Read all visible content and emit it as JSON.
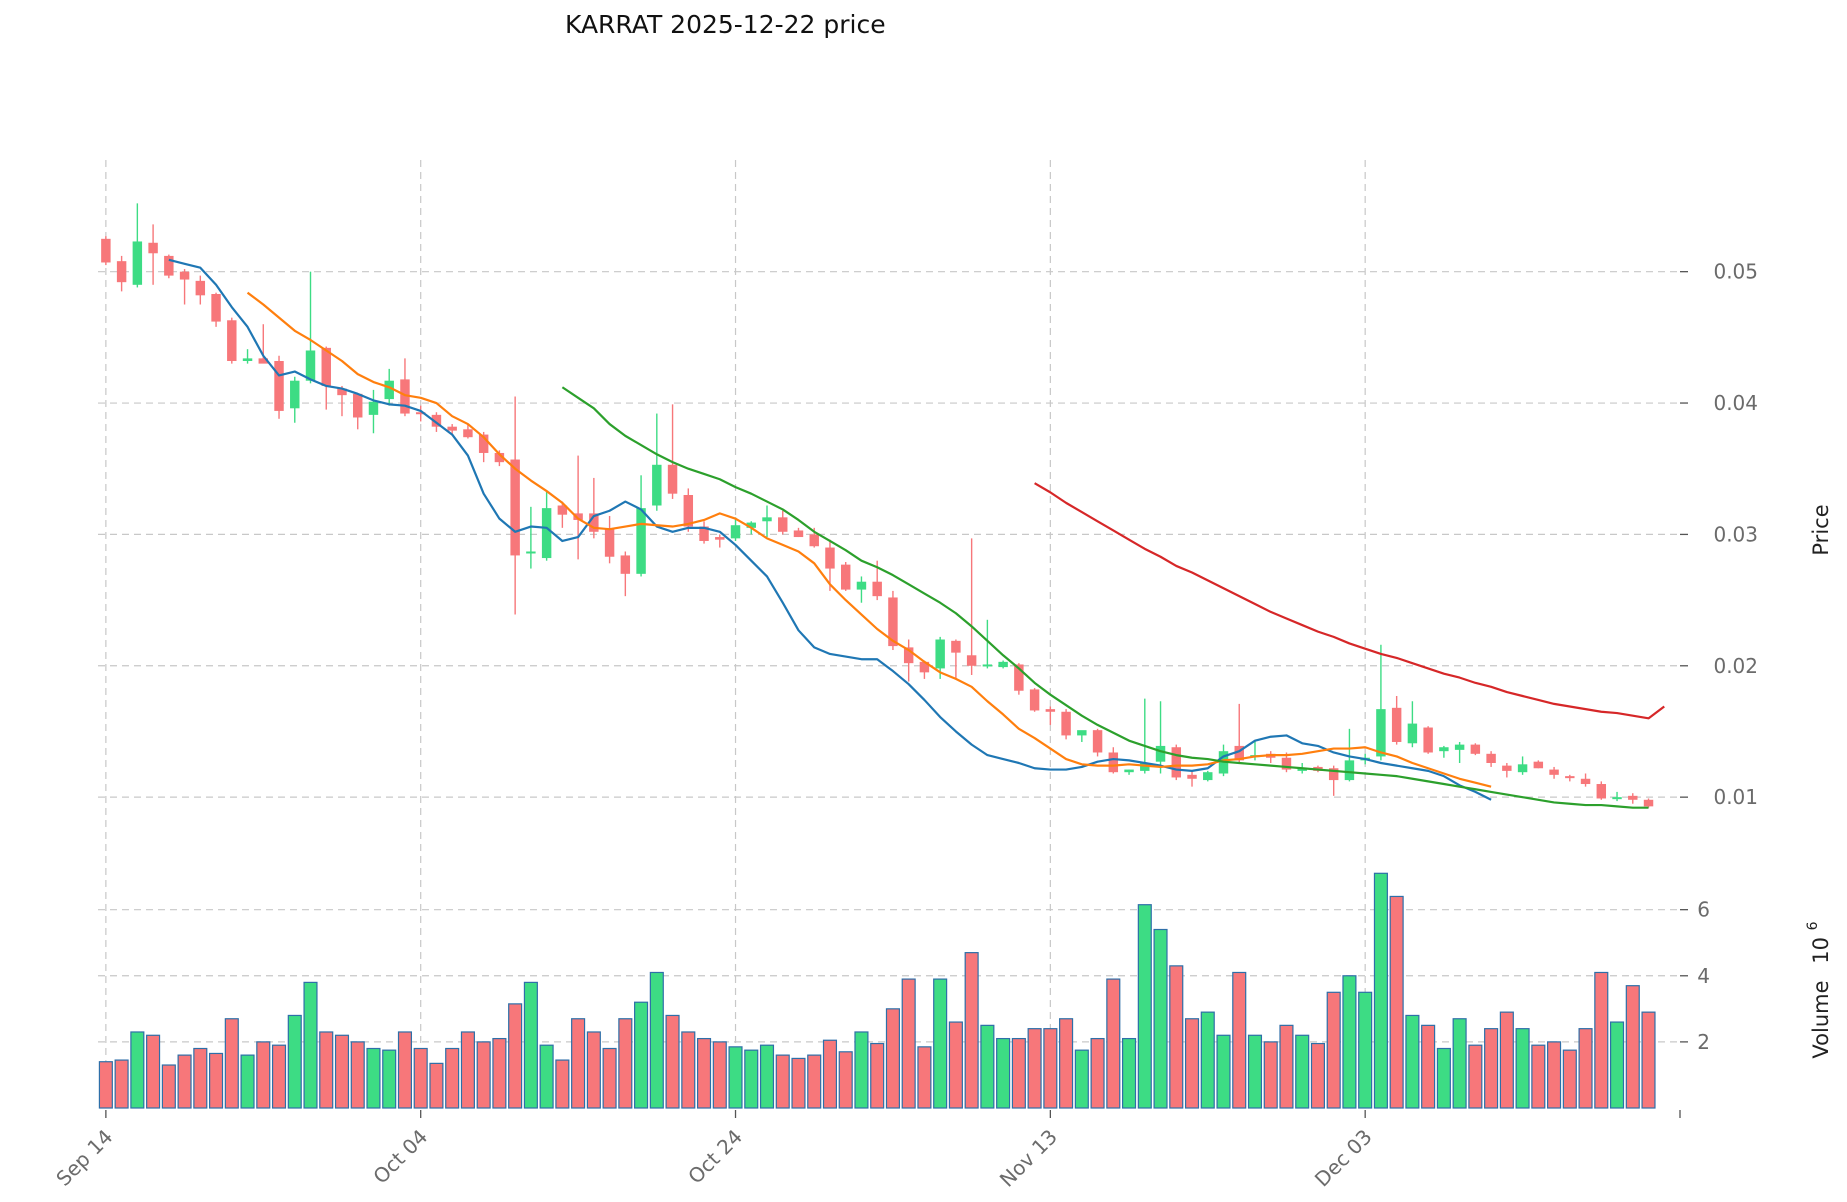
{
  "chart_data": {
    "type": "candlestick",
    "title": "KARRAT  2025-12-22  price",
    "ylabel_price": "Price",
    "ylabel_volume": "Volume",
    "volume_multiplier": "10",
    "volume_exponent": "6",
    "price_ylim": [
      0.0075,
      0.0585
    ],
    "volume_ylim": [
      0,
      7200000
    ],
    "price_ticks": [
      {
        "value": 0.01,
        "label": "0.01"
      },
      {
        "value": 0.02,
        "label": "0.02"
      },
      {
        "value": 0.03,
        "label": "0.03"
      },
      {
        "value": 0.04,
        "label": "0.04"
      },
      {
        "value": 0.05,
        "label": "0.05"
      }
    ],
    "volume_ticks": [
      {
        "value": 2000000,
        "label": "2"
      },
      {
        "value": 4000000,
        "label": "4"
      },
      {
        "value": 6000000,
        "label": "6"
      }
    ],
    "x_ticks": [
      {
        "index": 0,
        "label": "Sep 14"
      },
      {
        "index": 20,
        "label": "Oct 04"
      },
      {
        "index": 40,
        "label": "Oct 24"
      },
      {
        "index": 60,
        "label": "Nov 13"
      },
      {
        "index": 80,
        "label": "Dec 03"
      }
    ],
    "x_range": [
      -0.5,
      100
    ],
    "colors": {
      "up": "#3ddc84",
      "down": "#f7777a",
      "vol_edge": "#2e6fa8",
      "ma_short": "#1f77b4",
      "ma_mid": "#ff7f0e",
      "ma_long": "#2ca02c",
      "ma_longest": "#d62728"
    },
    "candles": [
      [
        0.0525,
        0.0527,
        0.0505,
        0.0507
      ],
      [
        0.0508,
        0.0512,
        0.0485,
        0.0492
      ],
      [
        0.049,
        0.0552,
        0.0488,
        0.0523
      ],
      [
        0.0522,
        0.0536,
        0.049,
        0.0514
      ],
      [
        0.0512,
        0.0513,
        0.0495,
        0.0497
      ],
      [
        0.05,
        0.0502,
        0.0475,
        0.0494
      ],
      [
        0.0493,
        0.0497,
        0.0475,
        0.0482
      ],
      [
        0.0483,
        0.0484,
        0.0458,
        0.0462
      ],
      [
        0.0463,
        0.0465,
        0.043,
        0.0432
      ],
      [
        0.0432,
        0.0441,
        0.043,
        0.0434
      ],
      [
        0.0434,
        0.046,
        0.0432,
        0.043
      ],
      [
        0.0432,
        0.0436,
        0.0388,
        0.0394
      ],
      [
        0.0396,
        0.042,
        0.0385,
        0.0417
      ],
      [
        0.0417,
        0.05,
        0.0415,
        0.044
      ],
      [
        0.0442,
        0.0443,
        0.0395,
        0.0413
      ],
      [
        0.0411,
        0.0413,
        0.039,
        0.0406
      ],
      [
        0.0407,
        0.0407,
        0.038,
        0.0389
      ],
      [
        0.0391,
        0.041,
        0.0377,
        0.0401
      ],
      [
        0.0403,
        0.0426,
        0.0398,
        0.0417
      ],
      [
        0.0418,
        0.0434,
        0.039,
        0.0392
      ],
      [
        0.0393,
        0.0398,
        0.0386,
        0.0392
      ],
      [
        0.0391,
        0.0393,
        0.0378,
        0.0382
      ],
      [
        0.0382,
        0.0384,
        0.0376,
        0.0379
      ],
      [
        0.038,
        0.0384,
        0.0373,
        0.0374
      ],
      [
        0.0376,
        0.0378,
        0.0355,
        0.0362
      ],
      [
        0.0362,
        0.0364,
        0.0352,
        0.0355
      ],
      [
        0.0357,
        0.0405,
        0.0239,
        0.0284
      ],
      [
        0.0286,
        0.0321,
        0.0274,
        0.0287
      ],
      [
        0.0282,
        0.0333,
        0.028,
        0.032
      ],
      [
        0.0322,
        0.0325,
        0.0305,
        0.0315
      ],
      [
        0.0316,
        0.036,
        0.0281,
        0.0311
      ],
      [
        0.0316,
        0.0343,
        0.0297,
        0.0302
      ],
      [
        0.0304,
        0.0314,
        0.0278,
        0.0283
      ],
      [
        0.0284,
        0.0287,
        0.0253,
        0.027
      ],
      [
        0.027,
        0.0345,
        0.0268,
        0.032
      ],
      [
        0.0322,
        0.0392,
        0.0318,
        0.0353
      ],
      [
        0.0353,
        0.0399,
        0.0327,
        0.0331
      ],
      [
        0.033,
        0.0335,
        0.0302,
        0.0306
      ],
      [
        0.0306,
        0.031,
        0.0293,
        0.0295
      ],
      [
        0.0298,
        0.03,
        0.029,
        0.0296
      ],
      [
        0.0297,
        0.0313,
        0.0295,
        0.0307
      ],
      [
        0.0305,
        0.031,
        0.03,
        0.0309
      ],
      [
        0.031,
        0.0322,
        0.0298,
        0.0313
      ],
      [
        0.0313,
        0.0318,
        0.03,
        0.0302
      ],
      [
        0.0303,
        0.0305,
        0.0298,
        0.0298
      ],
      [
        0.03,
        0.0305,
        0.029,
        0.0291
      ],
      [
        0.029,
        0.0296,
        0.0257,
        0.0274
      ],
      [
        0.0277,
        0.0279,
        0.0257,
        0.0258
      ],
      [
        0.0258,
        0.0268,
        0.0248,
        0.0264
      ],
      [
        0.0264,
        0.028,
        0.025,
        0.0253
      ],
      [
        0.0252,
        0.0257,
        0.0212,
        0.0215
      ],
      [
        0.0214,
        0.022,
        0.0188,
        0.0202
      ],
      [
        0.0203,
        0.0204,
        0.019,
        0.0195
      ],
      [
        0.0198,
        0.0222,
        0.019,
        0.022
      ],
      [
        0.0219,
        0.022,
        0.019,
        0.021
      ],
      [
        0.0208,
        0.0297,
        0.0193,
        0.02
      ],
      [
        0.02,
        0.0235,
        0.0198,
        0.0201
      ],
      [
        0.0199,
        0.0204,
        0.0198,
        0.0203
      ],
      [
        0.0201,
        0.0202,
        0.0178,
        0.0181
      ],
      [
        0.0182,
        0.0183,
        0.0165,
        0.0166
      ],
      [
        0.0167,
        0.0169,
        0.0155,
        0.0165
      ],
      [
        0.0165,
        0.0167,
        0.0144,
        0.0147
      ],
      [
        0.0147,
        0.015,
        0.0142,
        0.0151
      ],
      [
        0.0151,
        0.0152,
        0.0131,
        0.0134
      ],
      [
        0.0134,
        0.0138,
        0.0118,
        0.0119
      ],
      [
        0.0119,
        0.0121,
        0.0117,
        0.0121
      ],
      [
        0.012,
        0.0175,
        0.0118,
        0.0126
      ],
      [
        0.0127,
        0.0173,
        0.0118,
        0.0139
      ],
      [
        0.0138,
        0.014,
        0.0113,
        0.0115
      ],
      [
        0.0117,
        0.012,
        0.0108,
        0.0114
      ],
      [
        0.0113,
        0.012,
        0.0112,
        0.0119
      ],
      [
        0.0118,
        0.014,
        0.0116,
        0.0135
      ],
      [
        0.0139,
        0.0171,
        0.0126,
        0.0128
      ],
      [
        0.0131,
        0.0143,
        0.0128,
        0.0132
      ],
      [
        0.0133,
        0.0135,
        0.0126,
        0.013
      ],
      [
        0.013,
        0.0134,
        0.0119,
        0.0121
      ],
      [
        0.012,
        0.0126,
        0.0118,
        0.0122
      ],
      [
        0.0123,
        0.0124,
        0.0119,
        0.012
      ],
      [
        0.0122,
        0.0124,
        0.0101,
        0.0113
      ],
      [
        0.0113,
        0.0152,
        0.0112,
        0.0128
      ],
      [
        0.0128,
        0.0133,
        0.0125,
        0.013
      ],
      [
        0.0131,
        0.0216,
        0.0128,
        0.0167
      ],
      [
        0.0168,
        0.0177,
        0.014,
        0.0142
      ],
      [
        0.0141,
        0.0173,
        0.0138,
        0.0156
      ],
      [
        0.0153,
        0.0154,
        0.0133,
        0.0134
      ],
      [
        0.0135,
        0.0139,
        0.013,
        0.0138
      ],
      [
        0.0136,
        0.0142,
        0.0126,
        0.014
      ],
      [
        0.014,
        0.0141,
        0.0132,
        0.0133
      ],
      [
        0.0133,
        0.0135,
        0.0123,
        0.0126
      ],
      [
        0.0124,
        0.0126,
        0.0115,
        0.012
      ],
      [
        0.0119,
        0.0131,
        0.0117,
        0.0125
      ],
      [
        0.0127,
        0.0128,
        0.0122,
        0.0122
      ],
      [
        0.0121,
        0.0123,
        0.0114,
        0.0117
      ],
      [
        0.0116,
        0.0117,
        0.0112,
        0.0115
      ],
      [
        0.0114,
        0.0118,
        0.0108,
        0.011
      ],
      [
        0.011,
        0.0112,
        0.0098,
        0.0099
      ],
      [
        0.0099,
        0.0104,
        0.0097,
        0.01
      ],
      [
        0.0101,
        0.0103,
        0.0095,
        0.0098
      ],
      [
        0.0098,
        0.0099,
        0.0092,
        0.0093
      ]
    ],
    "volumes": [
      1400000,
      1450000,
      2300000,
      2200000,
      1300000,
      1600000,
      1800000,
      1650000,
      2700000,
      1600000,
      2000000,
      1900000,
      2800000,
      3800000,
      2300000,
      2200000,
      2000000,
      1800000,
      1750000,
      2300000,
      1800000,
      1350000,
      1800000,
      2300000,
      2000000,
      2100000,
      3150000,
      3800000,
      1900000,
      1450000,
      2700000,
      2300000,
      1800000,
      2700000,
      3200000,
      4100000,
      2800000,
      2300000,
      2100000,
      2000000,
      1850000,
      1750000,
      1900000,
      1600000,
      1500000,
      1600000,
      2050000,
      1700000,
      2300000,
      1950000,
      3000000,
      3900000,
      1850000,
      3900000,
      2600000,
      4700000,
      2500000,
      2100000,
      2100000,
      2400000,
      2400000,
      2700000,
      1750000,
      2100000,
      3900000,
      2100000,
      6150000,
      5400000,
      4300000,
      2700000,
      2900000,
      2200000,
      4100000,
      2200000,
      2000000,
      2500000,
      2200000,
      1950000,
      3500000,
      4000000,
      3500000,
      7100000,
      6400000,
      2800000,
      2500000,
      1800000,
      2700000,
      1900000,
      2400000,
      2900000,
      2400000,
      1900000,
      2000000,
      1750000,
      2400000,
      4100000,
      2600000,
      3700000,
      2900000
    ],
    "moving_averages": [
      {
        "name": "MA7",
        "color": "#1f77b4",
        "start": 4,
        "values": [
          0.0509,
          0.0506,
          0.0503,
          0.049,
          0.0473,
          0.0458,
          0.0436,
          0.0421,
          0.0424,
          0.0418,
          0.0413,
          0.0411,
          0.0407,
          0.0402,
          0.0399,
          0.0398,
          0.0394,
          0.0385,
          0.0376,
          0.036,
          0.0331,
          0.0312,
          0.0302,
          0.0306,
          0.0305,
          0.0295,
          0.0298,
          0.0314,
          0.0318,
          0.0325,
          0.0319,
          0.0306,
          0.0302,
          0.0305,
          0.0305,
          0.0302,
          0.0292,
          0.028,
          0.0268,
          0.0248,
          0.0227,
          0.0214,
          0.0209,
          0.0207,
          0.0205,
          0.0205,
          0.0196,
          0.0186,
          0.0174,
          0.0161,
          0.015,
          0.014,
          0.0132,
          0.0129,
          0.0126,
          0.0122,
          0.0121,
          0.0121,
          0.0123,
          0.0127,
          0.0129,
          0.0128,
          0.0126,
          0.0124,
          0.0121,
          0.012,
          0.0122,
          0.0131,
          0.0135,
          0.0143,
          0.0146,
          0.0147,
          0.0141,
          0.0139,
          0.0134,
          0.0131,
          0.0129,
          0.0126,
          0.0124,
          0.0122,
          0.012,
          0.0116,
          0.0109,
          0.0104,
          0.0098
        ]
      },
      {
        "name": "MA14",
        "color": "#ff7f0e",
        "start": 9,
        "values": [
          0.0484,
          0.0475,
          0.0465,
          0.0455,
          0.0448,
          0.044,
          0.0432,
          0.0422,
          0.0416,
          0.0412,
          0.0406,
          0.0404,
          0.04,
          0.039,
          0.0384,
          0.0374,
          0.0361,
          0.035,
          0.0341,
          0.0333,
          0.0324,
          0.0312,
          0.0305,
          0.0304,
          0.0306,
          0.0308,
          0.0307,
          0.0306,
          0.0308,
          0.0311,
          0.0316,
          0.0312,
          0.0305,
          0.0297,
          0.0292,
          0.0287,
          0.0278,
          0.0262,
          0.025,
          0.0239,
          0.0228,
          0.0219,
          0.0212,
          0.0203,
          0.0195,
          0.019,
          0.0184,
          0.0173,
          0.0163,
          0.0152,
          0.0145,
          0.0137,
          0.0129,
          0.0125,
          0.0124,
          0.0124,
          0.0125,
          0.0124,
          0.0123,
          0.0124,
          0.0124,
          0.0125,
          0.0128,
          0.0129,
          0.0131,
          0.0132,
          0.0132,
          0.0133,
          0.0135,
          0.0137,
          0.0137,
          0.0138,
          0.0134,
          0.0131,
          0.0126,
          0.0122,
          0.0118,
          0.0114,
          0.0111,
          0.0108
        ]
      },
      {
        "name": "MA30",
        "color": "#2ca02c",
        "start": 29,
        "values": [
          0.0412,
          0.0404,
          0.0396,
          0.0384,
          0.0375,
          0.0368,
          0.0361,
          0.0355,
          0.035,
          0.0346,
          0.0342,
          0.0336,
          0.0331,
          0.0325,
          0.0319,
          0.0311,
          0.0302,
          0.0295,
          0.0288,
          0.028,
          0.0275,
          0.0269,
          0.0262,
          0.0255,
          0.0248,
          0.024,
          0.023,
          0.0219,
          0.0208,
          0.0198,
          0.0187,
          0.0178,
          0.017,
          0.0162,
          0.0155,
          0.0149,
          0.0143,
          0.0139,
          0.0135,
          0.0132,
          0.013,
          0.0129,
          0.0127,
          0.0126,
          0.0125,
          0.0124,
          0.0123,
          0.0122,
          0.0121,
          0.012,
          0.0119,
          0.0118,
          0.0117,
          0.0116,
          0.0114,
          0.0112,
          0.011,
          0.0108,
          0.0106,
          0.0104,
          0.0102,
          0.01,
          0.0098,
          0.0096,
          0.0095,
          0.0094,
          0.0094,
          0.0093,
          0.0092,
          0.0092
        ]
      },
      {
        "name": "MA60",
        "color": "#d62728",
        "start": 59,
        "values": [
          0.0339,
          0.0332,
          0.0324,
          0.0317,
          0.031,
          0.0303,
          0.0296,
          0.0289,
          0.0283,
          0.0276,
          0.0271,
          0.0265,
          0.0259,
          0.0253,
          0.0247,
          0.0241,
          0.0236,
          0.0231,
          0.0226,
          0.0222,
          0.0217,
          0.0213,
          0.0209,
          0.0206,
          0.0202,
          0.0198,
          0.0194,
          0.0191,
          0.0187,
          0.0184,
          0.018,
          0.0177,
          0.0174,
          0.0171,
          0.0169,
          0.0167,
          0.0165,
          0.0164,
          0.0162,
          0.016,
          0.0169
        ]
      }
    ]
  }
}
